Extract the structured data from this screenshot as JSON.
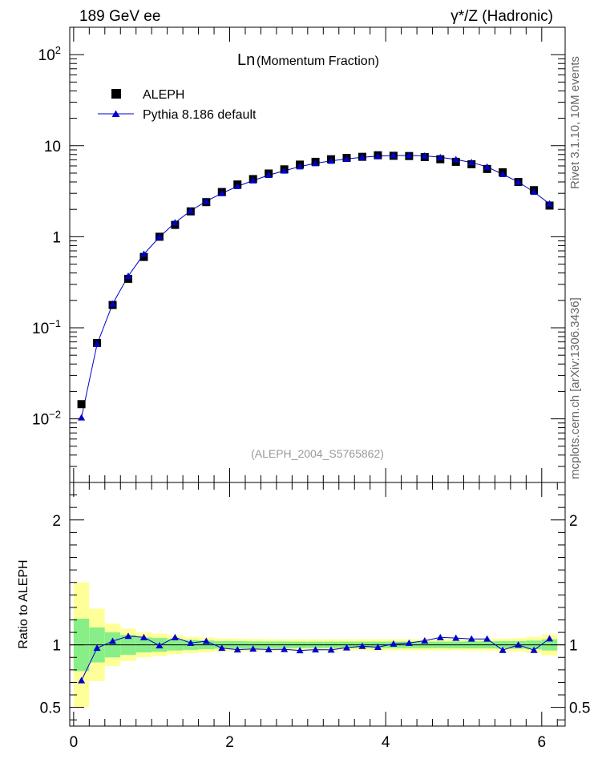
{
  "header": {
    "left": "189 GeV ee",
    "right": "γ*/Z (Hadronic)"
  },
  "side_text": {
    "rivet": "Rivet 3.1.10, 10M events",
    "mcplots": "mcplots.cern.ch [arXiv:1306.3436]"
  },
  "chart_data": [
    {
      "type": "scatter",
      "title_main": "Ln",
      "title_sub": "(Momentum Fraction)",
      "analysis_tag": "(ALEPH_2004_S5765862)",
      "yscale": "log",
      "ylim": [
        0.002,
        200
      ],
      "xlim": [
        -0.05,
        6.3
      ],
      "legend_position": "top-left",
      "y_tick_labels": [
        "10^-2",
        "10^-1",
        "1",
        "10",
        "10^2"
      ],
      "x": [
        0.1,
        0.3,
        0.5,
        0.7,
        0.9,
        1.1,
        1.3,
        1.5,
        1.7,
        1.9,
        2.1,
        2.3,
        2.5,
        2.7,
        2.9,
        3.1,
        3.3,
        3.5,
        3.7,
        3.9,
        4.1,
        4.3,
        4.5,
        4.7,
        4.9,
        5.1,
        5.3,
        5.5,
        5.7,
        5.9,
        6.1
      ],
      "series": [
        {
          "name": "ALEPH",
          "marker": "square",
          "color": "#000000",
          "values": [
            0.0145,
            0.068,
            0.178,
            0.345,
            0.6,
            1.0,
            1.35,
            1.9,
            2.4,
            3.1,
            3.75,
            4.3,
            4.95,
            5.5,
            6.2,
            6.65,
            7.1,
            7.35,
            7.55,
            7.85,
            7.75,
            7.7,
            7.5,
            7.1,
            6.65,
            6.25,
            5.55,
            5.1,
            4.0,
            3.25,
            2.2
          ]
        },
        {
          "name": "Pythia 8.186 default",
          "marker": "triangle",
          "color": "#0000cc",
          "values": [
            0.0103,
            0.066,
            0.183,
            0.37,
            0.645,
            0.99,
            1.43,
            1.93,
            2.46,
            3.0,
            3.58,
            4.13,
            4.75,
            5.3,
            5.9,
            6.4,
            6.8,
            7.15,
            7.45,
            7.7,
            7.8,
            7.8,
            7.75,
            7.45,
            7.05,
            6.55,
            5.85,
            4.85,
            4.0,
            3.1,
            2.3
          ]
        }
      ]
    },
    {
      "type": "line",
      "ylabel": "Ratio to ALEPH",
      "ylim": [
        0.35,
        2.3
      ],
      "xlim": [
        -0.05,
        6.3
      ],
      "y_ticks": [
        0.5,
        1,
        2
      ],
      "y_tick_labels": [
        "0.5",
        "1",
        "2"
      ],
      "x_ticks": [
        0,
        2,
        4,
        6
      ],
      "x_tick_labels": [
        "0",
        "2",
        "4",
        "6"
      ],
      "x": [
        0.1,
        0.3,
        0.5,
        0.7,
        0.9,
        1.1,
        1.3,
        1.5,
        1.7,
        1.9,
        2.1,
        2.3,
        2.5,
        2.7,
        2.9,
        3.1,
        3.3,
        3.5,
        3.7,
        3.9,
        4.1,
        4.3,
        4.5,
        4.7,
        4.9,
        5.1,
        5.3,
        5.5,
        5.7,
        5.9,
        6.1
      ],
      "ratio": {
        "name": "Pythia 8.186 default",
        "color": "#0000cc",
        "values": [
          0.715,
          0.975,
          1.03,
          1.07,
          1.06,
          0.995,
          1.06,
          1.015,
          1.03,
          0.975,
          0.962,
          0.968,
          0.963,
          0.965,
          0.955,
          0.962,
          0.96,
          0.978,
          0.99,
          0.982,
          1.008,
          1.015,
          1.033,
          1.06,
          1.055,
          1.048,
          1.048,
          0.958,
          1.0,
          0.958,
          1.05
        ]
      },
      "band_inner_halfwidth": [
        0.21,
        0.14,
        0.1,
        0.08,
        0.06,
        0.055,
        0.045,
        0.04,
        0.035,
        0.03,
        0.03,
        0.028,
        0.027,
        0.027,
        0.026,
        0.026,
        0.026,
        0.026,
        0.026,
        0.026,
        0.026,
        0.026,
        0.026,
        0.026,
        0.027,
        0.028,
        0.028,
        0.03,
        0.03,
        0.035,
        0.045
      ],
      "band_outer_halfwidth": [
        0.5,
        0.29,
        0.17,
        0.13,
        0.1,
        0.09,
        0.075,
        0.065,
        0.06,
        0.052,
        0.05,
        0.048,
        0.046,
        0.045,
        0.045,
        0.045,
        0.045,
        0.045,
        0.045,
        0.045,
        0.045,
        0.045,
        0.045,
        0.045,
        0.045,
        0.046,
        0.048,
        0.05,
        0.055,
        0.065,
        0.085
      ],
      "band_colors": {
        "inner": "#88ee88",
        "outer": "#ffff99"
      }
    }
  ]
}
